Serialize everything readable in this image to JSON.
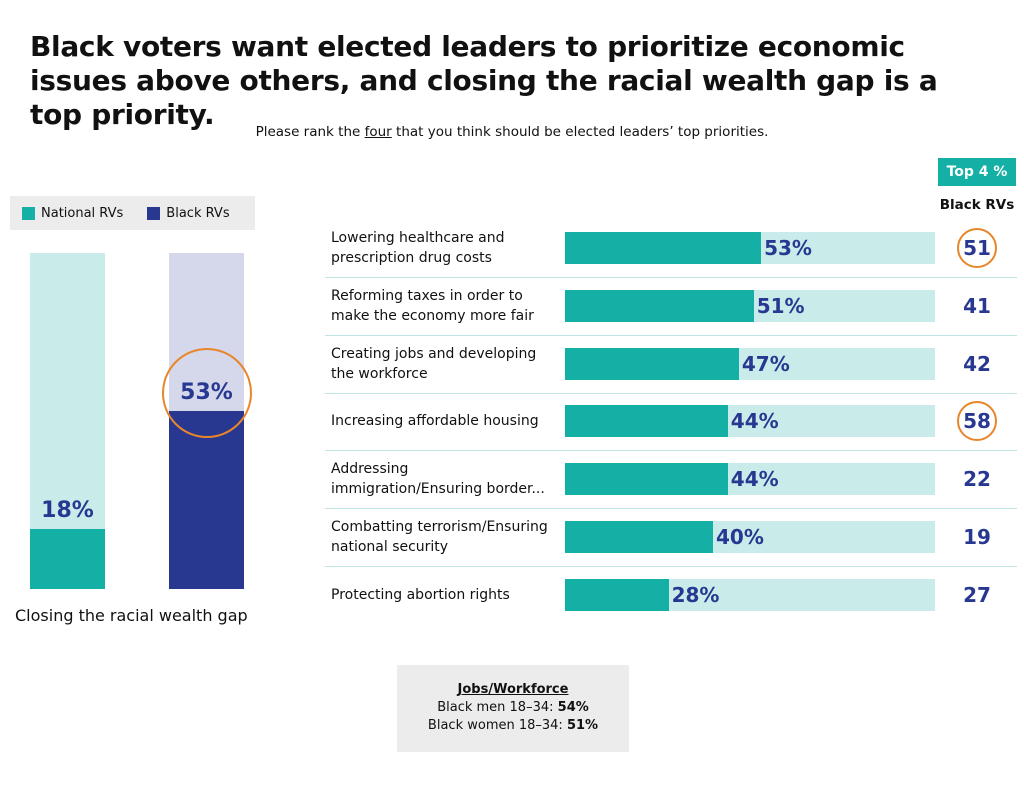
{
  "title": "Black voters want elected leaders to prioritize economic issues above others, and closing the racial wealth gap is a top priority.",
  "subtitle_parts": [
    "Please rank the",
    "four",
    "that you think should be elected leaders’ top priorities."
  ],
  "chart_data": [
    {
      "type": "bar",
      "categories": [
        "Closing the racial wealth gap"
      ],
      "series": [
        {
          "name": "National RVs",
          "color": "#14b0a5",
          "track_color": "#c9ecea",
          "values": [
            18
          ],
          "value_labels": [
            "18%"
          ],
          "circled": [
            false
          ]
        },
        {
          "name": "Black RVs",
          "color": "#283891",
          "track_color": "#d5d7ea",
          "values": [
            53
          ],
          "value_labels": [
            "53%"
          ],
          "circled": [
            true
          ]
        }
      ],
      "ylim": [
        0,
        100
      ]
    },
    {
      "type": "hbar",
      "categories": [
        "Lowering healthcare and prescription drug costs",
        "Reforming taxes in order to make the economy more fair",
        "Creating jobs and developing the workforce",
        "Increasing affordable housing",
        "Addressing immigration/Ensuring border...",
        "Combatting terrorism/Ensuring national security",
        "Protecting abortion rights"
      ],
      "values": [
        53,
        51,
        47,
        44,
        44,
        40,
        28
      ],
      "value_labels": [
        "53%",
        "51%",
        "47%",
        "44%",
        "44%",
        "40%",
        "28%"
      ],
      "color": "#14b0a5",
      "track_color": "#c9ecea",
      "xlim": [
        0,
        100
      ],
      "side_column": {
        "header": "Top 4 %",
        "subheader": "Black RVs",
        "values": [
          51,
          41,
          42,
          58,
          22,
          19,
          27
        ],
        "circled": [
          true,
          false,
          false,
          true,
          false,
          false,
          false
        ]
      }
    }
  ],
  "note": {
    "title": "Jobs/Workforce",
    "lines": [
      {
        "label": "Black men 18–34:",
        "value": "54%"
      },
      {
        "label": "Black women 18–34:",
        "value": "51%"
      }
    ]
  }
}
